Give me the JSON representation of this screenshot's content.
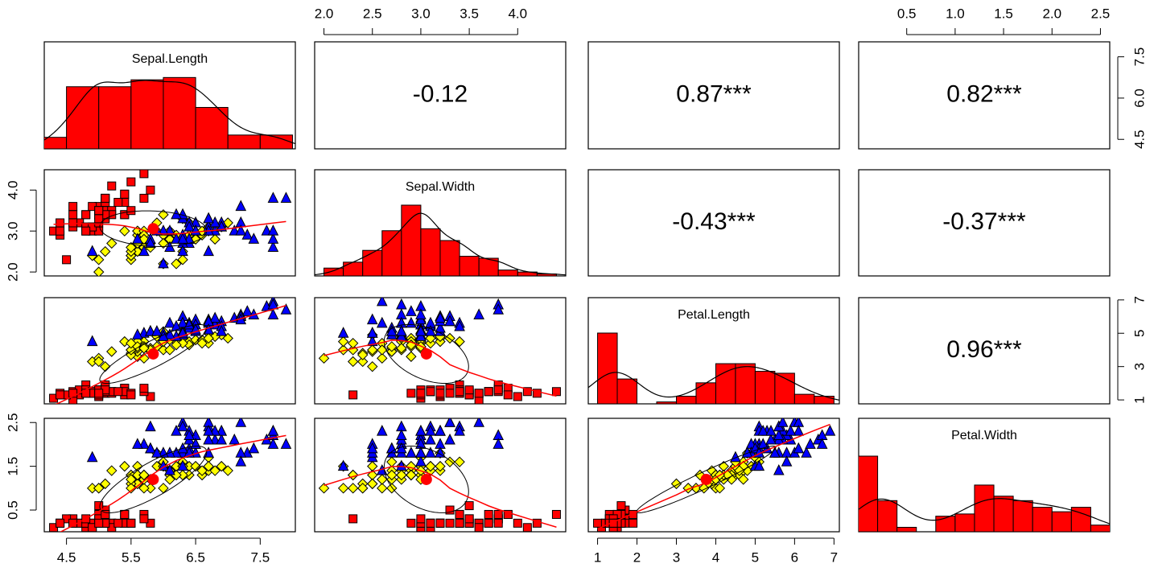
{
  "chart_data": {
    "type": "scatter_matrix",
    "hist_color": "red",
    "smooth_color": "red",
    "ellipse_color": "black",
    "variables": [
      {
        "name": "Sepal.Length",
        "lim": [
          4.156,
          8.044
        ],
        "xticks": [
          4.5,
          5.5,
          6.5,
          7.5
        ],
        "yticks": [
          4.5,
          {
            "value": 6,
            "label": "6.0"
          },
          7.5
        ],
        "bins": [
          4,
          4.5,
          5,
          5.5,
          6,
          6.5,
          7,
          7.5,
          8
        ],
        "counts": [
          5,
          27,
          27,
          30,
          31,
          18,
          6,
          6
        ]
      },
      {
        "name": "Sepal.Width",
        "lim": [
          1.904,
          4.496
        ],
        "xticks": [
          {
            "value": 2,
            "label": "2.0"
          },
          2.5,
          {
            "value": 3,
            "label": "3.0"
          },
          3.5,
          {
            "value": 4,
            "label": "4.0"
          }
        ],
        "yticks": [
          {
            "value": 2,
            "label": "2.0"
          },
          {
            "value": 3,
            "label": "3.0"
          },
          {
            "value": 4,
            "label": "4.0"
          }
        ],
        "bins": [
          2,
          2.2,
          2.4,
          2.6,
          2.8,
          3,
          3.2,
          3.4,
          3.6,
          3.8,
          4,
          4.2,
          4.4
        ],
        "counts": [
          4,
          7,
          13,
          23,
          36,
          24,
          18,
          10,
          9,
          3,
          2,
          1
        ]
      },
      {
        "name": "Petal.Length",
        "lim": [
          0.764,
          7.136
        ],
        "xticks": [
          1,
          2,
          3,
          4,
          5,
          6,
          7
        ],
        "yticks": [
          1,
          3,
          5,
          7
        ],
        "bins": [
          1,
          1.5,
          2,
          2.5,
          3,
          3.5,
          4,
          4.5,
          5,
          5.5,
          6,
          6.5,
          7
        ],
        "counts": [
          37,
          13,
          0,
          1,
          4,
          11,
          21,
          21,
          17,
          16,
          5,
          4
        ]
      },
      {
        "name": "Petal.Width",
        "lim": [
          0.004,
          2.596
        ],
        "xticks": [
          0.5,
          {
            "value": 1,
            "label": "1.0"
          },
          1.5,
          {
            "value": 2,
            "label": "2.0"
          },
          2.5
        ],
        "yticks": [
          0.5,
          1.5,
          2.5
        ],
        "bins": [
          0,
          0.2,
          0.4,
          0.6,
          0.8,
          1,
          1.2,
          1.4,
          1.6,
          1.8,
          2,
          2.2,
          2.4,
          2.6
        ],
        "counts": [
          34,
          14,
          2,
          0,
          7,
          8,
          21,
          16,
          14,
          11,
          9,
          11,
          3
        ]
      }
    ],
    "correlations": [
      "-0.12",
      "0.87***",
      "0.82***",
      "-0.43***",
      "-0.37***",
      "0.96***"
    ],
    "series": [
      {
        "color": "red",
        "marker": "square",
        "columns": [
          [
            5.1,
            4.9,
            4.7,
            4.6,
            5.0,
            5.4,
            4.6,
            5.0,
            4.4,
            4.9,
            5.4,
            4.8,
            4.8,
            4.3,
            5.8,
            5.7,
            5.4,
            5.1,
            5.7,
            5.1,
            5.4,
            5.1,
            4.6,
            5.1,
            4.8,
            5.0,
            5.0,
            5.2,
            5.2,
            4.7,
            4.8,
            5.4,
            5.2,
            5.5,
            4.9,
            5.0,
            5.5,
            4.9,
            4.4,
            5.1,
            5.0,
            4.5,
            4.4,
            5.0,
            5.1,
            4.8,
            5.1,
            4.6,
            5.3,
            5.0
          ],
          [
            3.5,
            3.0,
            3.2,
            3.1,
            3.6,
            3.9,
            3.4,
            3.4,
            2.9,
            3.1,
            3.7,
            3.4,
            3.0,
            3.0,
            4.0,
            4.4,
            3.9,
            3.5,
            3.8,
            3.8,
            3.4,
            3.7,
            3.6,
            3.3,
            3.4,
            3.0,
            3.4,
            3.5,
            3.4,
            3.2,
            3.1,
            3.4,
            4.1,
            4.2,
            3.1,
            3.2,
            3.5,
            3.6,
            3.0,
            3.4,
            3.5,
            2.3,
            3.2,
            3.5,
            3.8,
            3.0,
            3.8,
            3.2,
            3.7,
            3.3
          ],
          [
            1.4,
            1.4,
            1.3,
            1.5,
            1.4,
            1.7,
            1.4,
            1.5,
            1.4,
            1.5,
            1.5,
            1.6,
            1.4,
            1.1,
            1.2,
            1.5,
            1.3,
            1.4,
            1.7,
            1.5,
            1.7,
            1.5,
            1.0,
            1.7,
            1.9,
            1.6,
            1.6,
            1.5,
            1.4,
            1.6,
            1.6,
            1.5,
            1.5,
            1.4,
            1.5,
            1.2,
            1.3,
            1.4,
            1.3,
            1.5,
            1.3,
            1.3,
            1.3,
            1.6,
            1.9,
            1.4,
            1.6,
            1.4,
            1.5,
            1.4
          ],
          [
            0.2,
            0.2,
            0.2,
            0.2,
            0.2,
            0.4,
            0.3,
            0.2,
            0.2,
            0.1,
            0.2,
            0.2,
            0.1,
            0.1,
            0.2,
            0.4,
            0.4,
            0.3,
            0.3,
            0.3,
            0.2,
            0.4,
            0.2,
            0.5,
            0.2,
            0.2,
            0.4,
            0.2,
            0.2,
            0.2,
            0.2,
            0.4,
            0.1,
            0.2,
            0.2,
            0.2,
            0.2,
            0.1,
            0.2,
            0.2,
            0.3,
            0.3,
            0.2,
            0.6,
            0.4,
            0.3,
            0.2,
            0.2,
            0.2,
            0.2
          ]
        ]
      },
      {
        "color": "yellow",
        "marker": "diamond",
        "columns": [
          [
            7.0,
            6.4,
            6.9,
            5.5,
            6.5,
            5.7,
            6.3,
            4.9,
            6.6,
            5.2,
            5.0,
            5.9,
            6.0,
            6.1,
            5.6,
            6.7,
            5.6,
            5.8,
            6.2,
            5.6,
            5.9,
            6.1,
            6.3,
            6.1,
            6.4,
            6.6,
            6.8,
            6.7,
            6.0,
            5.7,
            5.5,
            5.5,
            5.8,
            6.0,
            5.4,
            6.0,
            6.7,
            6.3,
            5.6,
            5.5,
            5.5,
            6.1,
            5.8,
            5.0,
            5.6,
            5.7,
            5.7,
            6.2,
            5.1,
            5.7
          ],
          [
            3.2,
            3.2,
            3.1,
            2.3,
            2.8,
            2.8,
            3.3,
            2.4,
            2.9,
            2.7,
            2.0,
            3.0,
            2.2,
            2.9,
            2.9,
            3.1,
            3.0,
            2.7,
            2.2,
            2.5,
            3.2,
            2.8,
            2.5,
            2.8,
            2.9,
            3.0,
            2.8,
            3.0,
            2.9,
            2.6,
            2.4,
            2.4,
            2.7,
            2.7,
            3.0,
            3.4,
            3.1,
            2.3,
            3.0,
            2.5,
            2.6,
            3.0,
            2.6,
            2.3,
            2.7,
            3.0,
            2.9,
            2.9,
            2.5,
            2.8
          ],
          [
            4.7,
            4.5,
            4.9,
            4.0,
            4.6,
            4.5,
            4.7,
            3.3,
            4.6,
            3.9,
            3.5,
            4.2,
            4.0,
            4.7,
            3.6,
            4.4,
            4.5,
            4.1,
            4.5,
            3.9,
            4.8,
            4.0,
            4.9,
            4.7,
            4.3,
            4.4,
            4.8,
            5.0,
            4.5,
            3.5,
            3.8,
            3.7,
            3.9,
            5.1,
            4.5,
            4.5,
            4.7,
            4.4,
            4.1,
            4.0,
            4.4,
            4.6,
            4.0,
            3.3,
            4.2,
            4.2,
            4.2,
            4.3,
            3.0,
            4.1
          ],
          [
            1.4,
            1.5,
            1.5,
            1.3,
            1.5,
            1.3,
            1.6,
            1.0,
            1.3,
            1.4,
            1.0,
            1.5,
            1.0,
            1.4,
            1.3,
            1.4,
            1.5,
            1.0,
            1.5,
            1.1,
            1.8,
            1.3,
            1.5,
            1.2,
            1.3,
            1.4,
            1.4,
            1.7,
            1.5,
            1.0,
            1.1,
            1.0,
            1.2,
            1.6,
            1.5,
            1.6,
            1.5,
            1.3,
            1.3,
            1.3,
            1.2,
            1.4,
            1.2,
            1.0,
            1.3,
            1.2,
            1.3,
            1.3,
            1.1,
            1.3
          ]
        ]
      },
      {
        "color": "blue",
        "marker": "triangle",
        "columns": [
          [
            6.3,
            5.8,
            7.1,
            6.3,
            6.5,
            7.6,
            4.9,
            7.3,
            6.7,
            7.2,
            6.5,
            6.4,
            6.8,
            5.7,
            5.8,
            6.4,
            6.5,
            7.7,
            7.7,
            6.0,
            6.9,
            5.6,
            7.7,
            6.3,
            6.7,
            7.2,
            6.2,
            6.1,
            6.4,
            7.2,
            7.4,
            7.9,
            6.4,
            6.3,
            6.1,
            7.7,
            6.3,
            6.4,
            6.0,
            6.9,
            6.7,
            6.9,
            5.8,
            6.8,
            6.7,
            6.7,
            6.3,
            6.5,
            6.2,
            5.9
          ],
          [
            3.3,
            2.7,
            3.0,
            2.9,
            3.0,
            3.0,
            2.5,
            2.9,
            2.5,
            3.6,
            3.2,
            2.7,
            3.0,
            2.5,
            2.8,
            3.2,
            3.0,
            3.8,
            2.6,
            2.2,
            3.2,
            2.8,
            2.8,
            2.7,
            3.3,
            3.2,
            2.8,
            3.0,
            2.8,
            3.0,
            2.8,
            3.8,
            2.8,
            2.8,
            2.6,
            3.0,
            3.4,
            3.1,
            3.0,
            3.1,
            3.1,
            3.1,
            2.7,
            3.2,
            3.3,
            3.0,
            2.5,
            3.0,
            3.4,
            3.0
          ],
          [
            6.0,
            5.1,
            5.9,
            5.6,
            5.8,
            6.6,
            4.5,
            6.3,
            5.8,
            6.1,
            5.1,
            5.3,
            5.5,
            5.0,
            5.1,
            5.3,
            5.5,
            6.7,
            6.9,
            5.0,
            5.7,
            4.9,
            6.7,
            4.9,
            5.7,
            6.0,
            4.8,
            4.9,
            5.6,
            5.8,
            6.1,
            6.4,
            5.6,
            5.1,
            5.6,
            6.1,
            5.6,
            5.5,
            4.8,
            5.4,
            5.6,
            5.1,
            5.1,
            5.9,
            5.7,
            5.2,
            5.0,
            5.2,
            5.4,
            5.1
          ],
          [
            2.5,
            1.9,
            2.1,
            1.8,
            2.2,
            2.1,
            1.7,
            1.8,
            1.8,
            2.5,
            2.0,
            1.9,
            2.1,
            2.0,
            2.4,
            2.3,
            1.8,
            2.2,
            2.3,
            1.5,
            2.3,
            2.0,
            2.0,
            1.8,
            2.1,
            1.8,
            1.8,
            1.8,
            2.1,
            1.6,
            1.9,
            2.0,
            2.2,
            1.5,
            1.4,
            2.3,
            2.4,
            1.8,
            1.8,
            2.1,
            2.4,
            2.3,
            1.9,
            2.3,
            2.5,
            2.3,
            1.9,
            2.0,
            2.3,
            1.8
          ]
        ]
      }
    ]
  }
}
